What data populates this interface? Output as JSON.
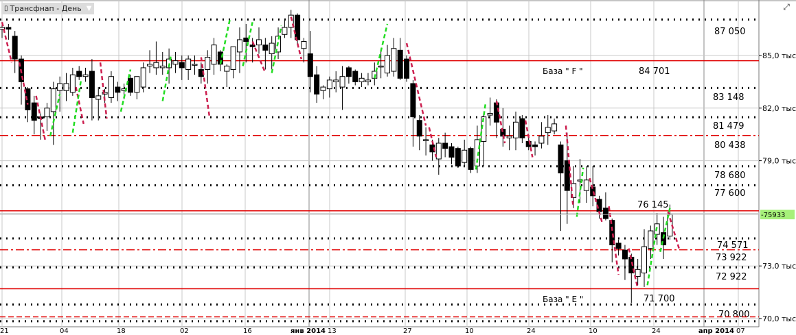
{
  "header": {
    "title": "Трансфнап - День",
    "candles_icon": "candlestick-icon",
    "dropdown_icon": "chevron-down-icon",
    "expand_icon": "expand-icon"
  },
  "chart_data": {
    "type": "candlestick",
    "title": "Трансфнап - День",
    "ylim": [
      69.7,
      88.0
    ],
    "y_unit": "тыс.",
    "y_ticks": [
      {
        "value": 85,
        "label": "85,0 тыс."
      },
      {
        "value": 82,
        "label": "82,0 тыс."
      },
      {
        "value": 79,
        "label": "79,0 тыс."
      },
      {
        "value": 76,
        "label": ""
      },
      {
        "value": 73,
        "label": "73,0 тыс."
      },
      {
        "value": 70,
        "label": "70,0 тыс."
      }
    ],
    "x_ticks": [
      {
        "label": "21",
        "bold": false
      },
      {
        "label": "04",
        "bold": false
      },
      {
        "label": "18",
        "bold": false
      },
      {
        "label": "02",
        "bold": false
      },
      {
        "label": "16",
        "bold": false
      },
      {
        "label": "янв 2014",
        "bold": true
      },
      {
        "label": "13",
        "bold": false
      },
      {
        "label": "27",
        "bold": false
      },
      {
        "label": "10",
        "bold": false
      },
      {
        "label": "24",
        "bold": false
      },
      {
        "label": "10",
        "bold": false
      },
      {
        "label": "24",
        "bold": false
      },
      {
        "label": "апр 2014",
        "bold": true
      },
      {
        "label": "07",
        "bold": false
      }
    ],
    "grid": true,
    "current_price": {
      "label": "-75933",
      "value": 75.933,
      "color": "#a6f07a"
    },
    "levels": [
      {
        "value": 87.05,
        "style": "dotted",
        "color": "#000000",
        "label": "87 050"
      },
      {
        "value": 84.701,
        "style": "solid",
        "color": "#e00000",
        "label": "84 701",
        "name": "База \" F \""
      },
      {
        "value": 83.148,
        "style": "dotted",
        "color": "#000000",
        "label": "83 148"
      },
      {
        "value": 81.479,
        "style": "dotted",
        "color": "#000000",
        "label": "81 479"
      },
      {
        "value": 80.438,
        "style": "dashdot",
        "color": "#e00000",
        "label": "80 438"
      },
      {
        "value": 78.68,
        "style": "dotted",
        "color": "#000000",
        "label": "78 680"
      },
      {
        "value": 77.6,
        "style": "dotted",
        "color": "#000000",
        "label": "77 600"
      },
      {
        "value": 76.145,
        "style": "solid",
        "color": "#e00000",
        "label": "76 145"
      },
      {
        "value": 74.571,
        "style": "dotted",
        "color": "#000000",
        "label": "74 571"
      },
      {
        "value": 73.922,
        "style": "dashdot",
        "color": "#e00000",
        "label": "73 922"
      },
      {
        "value": 72.922,
        "style": "dotted",
        "color": "#000000",
        "label": "72 922"
      },
      {
        "value": 71.7,
        "style": "solid",
        "color": "#e00000",
        "label": "71 700",
        "name": "База \" E \""
      },
      {
        "value": 70.8,
        "style": "dotted",
        "color": "#000000",
        "label": "70 800"
      },
      {
        "value": 70.1,
        "style": "dashed",
        "color": "#e00000",
        "label": ""
      },
      {
        "value": 69.85,
        "style": "dotted",
        "color": "#000000",
        "label": ""
      }
    ],
    "colors": {
      "up_candle": "#ffffff",
      "down_candle": "#000000",
      "up_swing": "#22dd22",
      "down_swing": "#cc1f4f"
    },
    "ohlc": [
      [
        86.5,
        86.9,
        86.0,
        86.6
      ],
      [
        86.6,
        86.8,
        85.9,
        86.5
      ],
      [
        86.1,
        86.4,
        84.0,
        84.8
      ],
      [
        84.8,
        85.0,
        82.2,
        83.5
      ],
      [
        83.1,
        83.2,
        81.2,
        81.9
      ],
      [
        82.3,
        82.7,
        80.5,
        81.3
      ],
      [
        81.5,
        81.7,
        80.2,
        81.4
      ],
      [
        81.5,
        82.3,
        80.7,
        82.0
      ],
      [
        81.8,
        83.5,
        79.9,
        83.1
      ],
      [
        83.0,
        83.8,
        81.8,
        83.4
      ],
      [
        83.0,
        84.0,
        82.4,
        83.4
      ],
      [
        82.9,
        84.3,
        82.7,
        83.9
      ],
      [
        84.1,
        84.4,
        83.6,
        83.8
      ],
      [
        83.8,
        84.3,
        83.5,
        83.9
      ],
      [
        84.1,
        84.8,
        81.3,
        82.6
      ],
      [
        82.5,
        83.2,
        81.3,
        82.7
      ],
      [
        82.8,
        83.1,
        82.3,
        82.9
      ],
      [
        82.6,
        84.1,
        82.3,
        83.8
      ],
      [
        83.2,
        83.5,
        82.4,
        82.9
      ],
      [
        83.0,
        83.4,
        82.5,
        83.1
      ],
      [
        83.7,
        83.9,
        82.7,
        82.9
      ],
      [
        82.9,
        83.8,
        82.5,
        83.8
      ],
      [
        83.2,
        84.6,
        82.9,
        84.3
      ],
      [
        84.4,
        85.3,
        84.0,
        84.5
      ],
      [
        84.3,
        85.8,
        83.9,
        84.6
      ],
      [
        84.3,
        85.2,
        83.9,
        84.4
      ],
      [
        84.3,
        85.4,
        83.4,
        84.8
      ],
      [
        84.5,
        85.2,
        84.0,
        84.7
      ],
      [
        84.6,
        85.0,
        83.6,
        84.3
      ],
      [
        84.2,
        85.0,
        83.6,
        84.8
      ],
      [
        84.5,
        85.0,
        83.9,
        84.5
      ],
      [
        84.2,
        84.6,
        83.4,
        83.8
      ],
      [
        84.2,
        85.3,
        83.4,
        84.9
      ],
      [
        84.5,
        86.0,
        83.9,
        85.6
      ],
      [
        85.2,
        85.3,
        84.1,
        84.5
      ],
      [
        84.1,
        84.5,
        83.2,
        84.4
      ],
      [
        84.2,
        85.5,
        83.7,
        85.5
      ],
      [
        85.2,
        86.6,
        84.0,
        85.9
      ],
      [
        86.0,
        86.8,
        84.6,
        85.8
      ],
      [
        85.6,
        86.0,
        84.6,
        85.5
      ],
      [
        85.6,
        86.6,
        85.1,
        85.9
      ],
      [
        85.6,
        86.0,
        84.2,
        85.3
      ],
      [
        85.1,
        86.1,
        84.2,
        85.7
      ],
      [
        85.2,
        86.6,
        84.8,
        86.1
      ],
      [
        86.2,
        87.0,
        86.0,
        86.6
      ],
      [
        86.6,
        87.6,
        86.0,
        87.3
      ],
      [
        87.3,
        87.4,
        85.6,
        85.9
      ],
      [
        85.4,
        86.0,
        84.6,
        85.8
      ],
      [
        85.1,
        86.4,
        82.9,
        83.8
      ],
      [
        83.9,
        84.4,
        82.3,
        82.8
      ],
      [
        83.0,
        83.3,
        82.5,
        83.2
      ],
      [
        83.1,
        83.8,
        82.6,
        83.6
      ],
      [
        83.5,
        84.1,
        82.9,
        83.6
      ],
      [
        83.2,
        84.4,
        81.9,
        83.8
      ],
      [
        84.3,
        84.4,
        83.4,
        83.8
      ],
      [
        84.1,
        84.2,
        83.3,
        83.5
      ],
      [
        83.5,
        84.0,
        83.2,
        83.7
      ],
      [
        83.5,
        84.0,
        83.3,
        83.6
      ],
      [
        83.7,
        84.6,
        83.3,
        84.1
      ],
      [
        84.4,
        85.4,
        83.7,
        84.4
      ],
      [
        84.0,
        85.6,
        83.8,
        85.0
      ],
      [
        84.1,
        86.0,
        83.8,
        85.4
      ],
      [
        85.3,
        86.0,
        83.6,
        83.7
      ],
      [
        84.8,
        85.0,
        83.5,
        83.7
      ],
      [
        83.4,
        83.6,
        79.8,
        81.5
      ],
      [
        81.3,
        81.6,
        79.6,
        80.4
      ],
      [
        80.2,
        80.9,
        79.3,
        80.2
      ],
      [
        79.9,
        80.2,
        79.0,
        79.5
      ],
      [
        79.1,
        80.3,
        78.2,
        80.0
      ],
      [
        80.0,
        80.6,
        79.2,
        79.7
      ],
      [
        79.8,
        80.0,
        78.8,
        79.2
      ],
      [
        79.7,
        79.8,
        78.6,
        78.7
      ],
      [
        78.9,
        80.2,
        78.7,
        79.6
      ],
      [
        79.7,
        79.8,
        78.3,
        78.5
      ],
      [
        78.7,
        81.0,
        78.3,
        80.2
      ],
      [
        80.1,
        81.6,
        78.7,
        81.5
      ],
      [
        81.6,
        82.6,
        81.0,
        81.7
      ],
      [
        82.3,
        82.5,
        80.3,
        81.2
      ],
      [
        80.8,
        82.0,
        79.8,
        80.4
      ],
      [
        80.3,
        81.0,
        79.6,
        80.4
      ],
      [
        80.3,
        81.8,
        79.6,
        81.2
      ],
      [
        81.4,
        81.6,
        80.0,
        80.3
      ],
      [
        80.1,
        80.4,
        79.6,
        79.8
      ],
      [
        79.9,
        80.1,
        79.3,
        79.8
      ],
      [
        80.0,
        81.2,
        79.7,
        80.4
      ],
      [
        80.6,
        81.6,
        79.9,
        80.9
      ],
      [
        80.7,
        81.4,
        80.5,
        81.1
      ],
      [
        79.9,
        80.1,
        75.0,
        78.3
      ],
      [
        79.0,
        80.6,
        75.4,
        77.3
      ],
      [
        76.9,
        78.7,
        76.3,
        77.7
      ],
      [
        77.9,
        79.1,
        76.6,
        77.9
      ],
      [
        77.3,
        78.7,
        76.6,
        77.9
      ],
      [
        77.5,
        78.7,
        76.4,
        77.0
      ],
      [
        76.8,
        77.0,
        75.7,
        76.1
      ],
      [
        76.3,
        77.2,
        75.6,
        75.7
      ],
      [
        75.6,
        75.7,
        73.2,
        74.2
      ],
      [
        74.3,
        74.5,
        73.6,
        74.0
      ],
      [
        73.9,
        74.2,
        72.2,
        73.4
      ],
      [
        73.5,
        73.7,
        70.9,
        72.6
      ],
      [
        72.4,
        73.4,
        71.9,
        72.8
      ],
      [
        72.6,
        75.1,
        71.8,
        74.1
      ],
      [
        74.0,
        75.3,
        73.4,
        75.0
      ],
      [
        74.8,
        76.0,
        74.2,
        75.4
      ],
      [
        74.9,
        75.8,
        73.4,
        74.2
      ],
      [
        74.7,
        76.5,
        74.5,
        75.933
      ]
    ],
    "swings_down": [
      [
        0,
        86.9,
        1.5,
        84.6
      ],
      [
        2.7,
        84.6,
        4,
        82.2
      ],
      [
        5.3,
        82.7,
        6.7,
        80.2
      ],
      [
        11.5,
        83.2,
        12.7,
        81.1
      ],
      [
        15.3,
        84.6,
        16.3,
        81.4
      ],
      [
        31,
        84.9,
        32.3,
        81.5
      ],
      [
        39,
        85.8,
        41,
        84.0
      ],
      [
        45,
        87.2,
        46.6,
        84.8
      ],
      [
        63,
        85.7,
        66,
        81.0
      ],
      [
        66.5,
        80.9,
        67.6,
        79.2
      ],
      [
        77,
        82.4,
        78.3,
        80.0
      ],
      [
        81.5,
        81.3,
        82.6,
        79.2
      ],
      [
        87.8,
        81.0,
        88.9,
        76.5
      ],
      [
        91.5,
        78.0,
        93.5,
        75.4
      ],
      [
        94.5,
        76.4,
        96,
        72.5
      ],
      [
        97.6,
        74.0,
        99,
        71.7
      ],
      [
        103.7,
        76.1,
        105.5,
        73.9
      ]
    ],
    "swings_up": [
      [
        7.5,
        80.4,
        9,
        82.8
      ],
      [
        11,
        80.6,
        12.3,
        83.6
      ],
      [
        18.5,
        81.8,
        20,
        84.2
      ],
      [
        25,
        82.4,
        26.3,
        85.0
      ],
      [
        34,
        84.5,
        35.5,
        87.1
      ],
      [
        37.5,
        84.4,
        39,
        86.9
      ],
      [
        42,
        84.0,
        43.5,
        86.7
      ],
      [
        58,
        83.7,
        60,
        86.8
      ],
      [
        73.8,
        78.5,
        75.3,
        82.3
      ],
      [
        89.5,
        75.8,
        90.5,
        78.6
      ],
      [
        100.5,
        71.9,
        102,
        75.3
      ],
      [
        102.5,
        73.8,
        104,
        76.3
      ]
    ]
  }
}
